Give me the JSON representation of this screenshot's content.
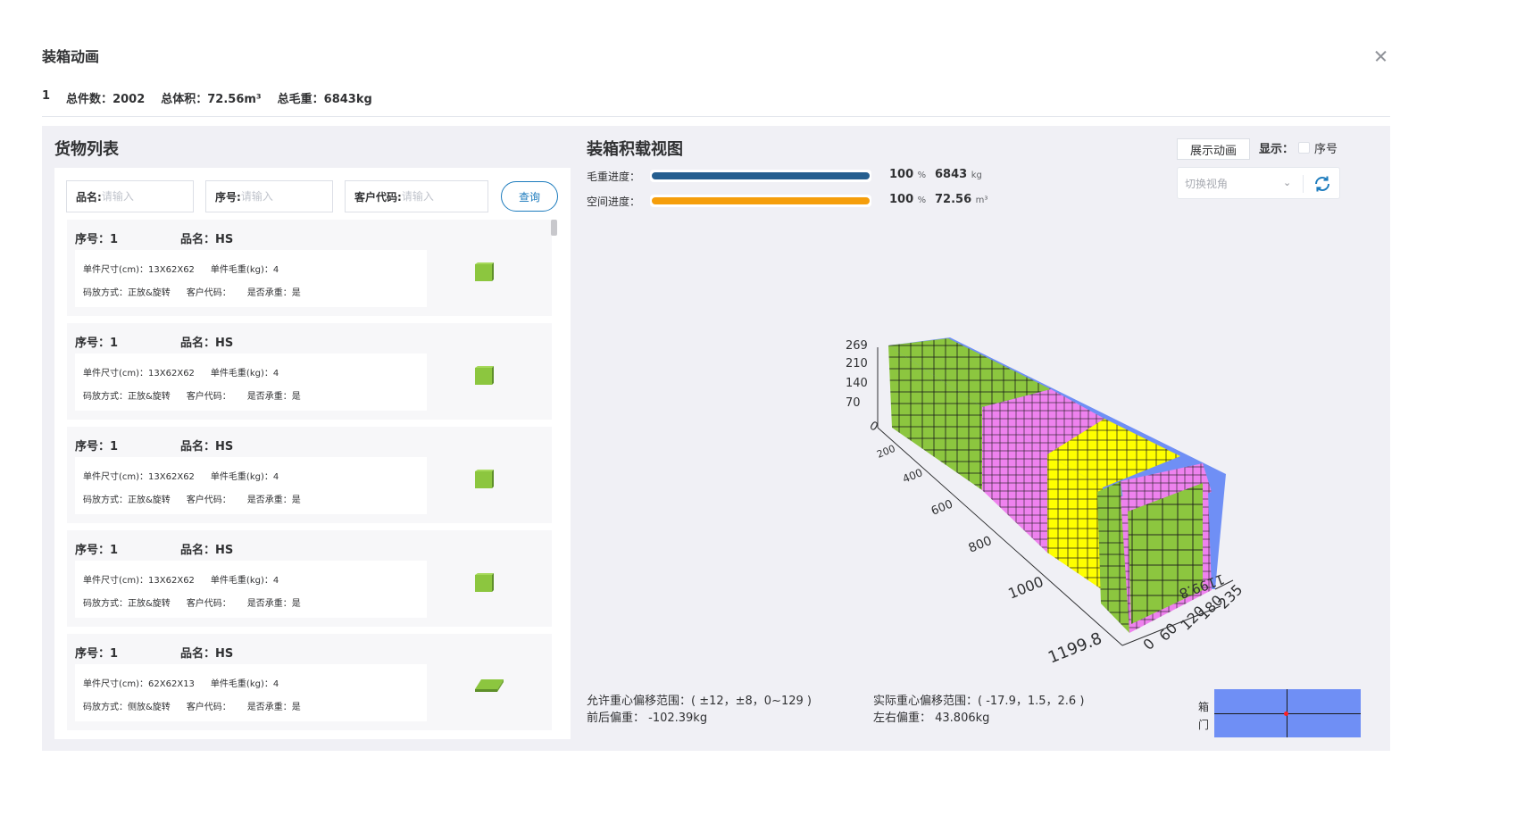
{
  "dialog": {
    "title": "装箱动画"
  },
  "summary": {
    "index": "1",
    "total_count_label": "总件数：",
    "total_count": "2002",
    "total_volume_label": "总体积：",
    "total_volume": "72.56m³",
    "total_weight_label": "总毛重：",
    "total_weight": "6843kg"
  },
  "cargo_list": {
    "title": "货物列表",
    "search": {
      "name_label": "品名:",
      "seq_label": "序号:",
      "customer_label": "客户代码:",
      "placeholder": "请输入",
      "query_button": "查询"
    },
    "items": [
      {
        "seq_label": "序号：",
        "seq": "1",
        "name_label": "品名：",
        "name": "HS",
        "size": "单件尺寸(cm)：13X62X62",
        "weight": "单件毛重(kg)：4",
        "stack": "码放方式：正放&旋转",
        "customer": "客户代码：",
        "bearing": "是否承重：是",
        "shape": "cube"
      },
      {
        "seq_label": "序号：",
        "seq": "1",
        "name_label": "品名：",
        "name": "HS",
        "size": "单件尺寸(cm)：13X62X62",
        "weight": "单件毛重(kg)：4",
        "stack": "码放方式：正放&旋转",
        "customer": "客户代码：",
        "bearing": "是否承重：是",
        "shape": "cube"
      },
      {
        "seq_label": "序号：",
        "seq": "1",
        "name_label": "品名：",
        "name": "HS",
        "size": "单件尺寸(cm)：13X62X62",
        "weight": "单件毛重(kg)：4",
        "stack": "码放方式：正放&旋转",
        "customer": "客户代码：",
        "bearing": "是否承重：是",
        "shape": "cube"
      },
      {
        "seq_label": "序号：",
        "seq": "1",
        "name_label": "品名：",
        "name": "HS",
        "size": "单件尺寸(cm)：13X62X62",
        "weight": "单件毛重(kg)：4",
        "stack": "码放方式：正放&旋转",
        "customer": "客户代码：",
        "bearing": "是否承重：是",
        "shape": "cube"
      },
      {
        "seq_label": "序号：",
        "seq": "1",
        "name_label": "品名：",
        "name": "HS",
        "size": "单件尺寸(cm)：62X62X13",
        "weight": "单件毛重(kg)：4",
        "stack": "码放方式：侧放&旋转",
        "customer": "客户代码：",
        "bearing": "是否承重：是",
        "shape": "flat"
      }
    ]
  },
  "load_view": {
    "title": "装箱积载视图",
    "play_button": "展示动画",
    "show_label": "显示：",
    "seq_checkbox_label": "序号",
    "view_select_placeholder": "切换视角",
    "weight_progress": {
      "label": "毛重进度：",
      "percent": 100,
      "percent_text": "100",
      "percent_unit": "%",
      "value": "6843",
      "unit": "kg",
      "color": "#265f8f"
    },
    "space_progress": {
      "label": "空间进度：",
      "percent": 100,
      "percent_text": "100",
      "percent_unit": "%",
      "value": "72.56",
      "unit": "m³",
      "color": "#f59e0b"
    },
    "axis_ticks": {
      "height": [
        "269",
        "210",
        "140",
        "70",
        "0"
      ],
      "length": [
        "200",
        "400",
        "600",
        "800",
        "1000",
        "1199.8"
      ],
      "width": [
        "0",
        "60",
        "120",
        "180",
        "235"
      ],
      "end_label": "1199.8"
    },
    "cargo_colors": {
      "green": "#8cc63f",
      "pink": "#ee82ee",
      "yellow": "#ffff00",
      "container": "#6f8ff5"
    },
    "cg": {
      "allowed_range": "允许重心偏移范围：( ±12，±8，0~129 )",
      "actual_range": "实际重心偏移范围：( -17.9，1.5，2.6 )",
      "front_back": "前后偏重：  -102.39kg",
      "left_right": "左右偏重：  43.806kg",
      "door_label_1": "箱",
      "door_label_2": "门"
    }
  }
}
